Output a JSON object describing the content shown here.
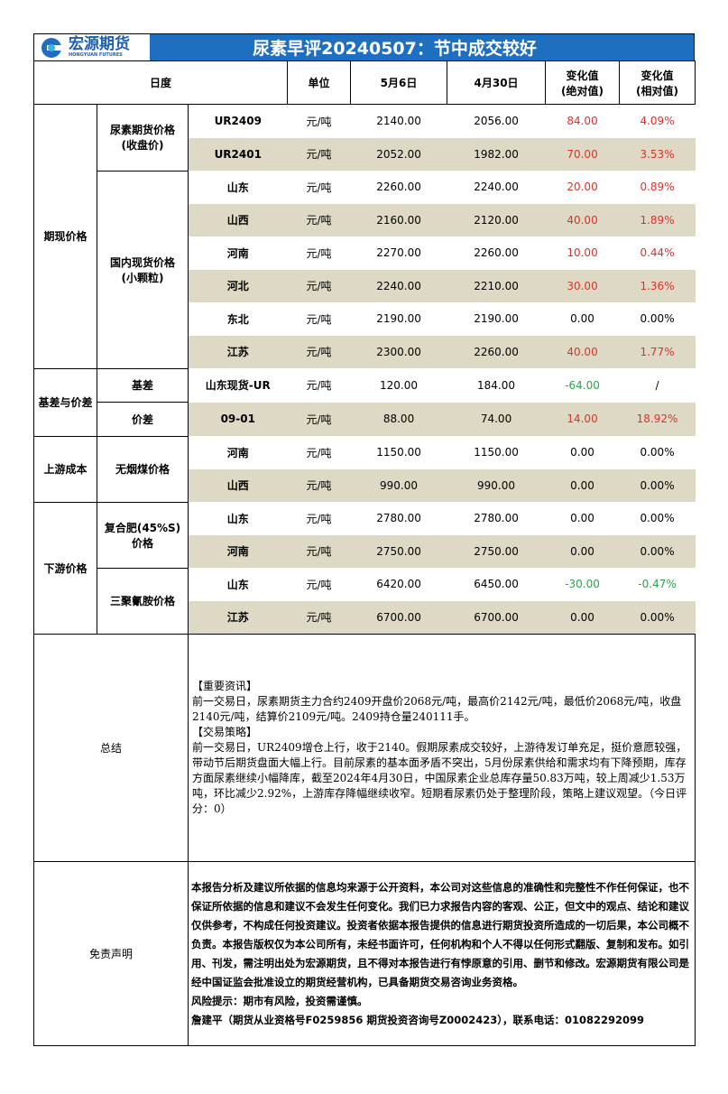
{
  "header": {
    "logo_cn": "宏源期货",
    "logo_en": "HONGYUAN FUTURES",
    "title": "尿素早评20240507：节中成交较好"
  },
  "table": {
    "columns": [
      "日度",
      "单位",
      "5月6日",
      "4月30日",
      "变化值\n(绝对值)",
      "变化值\n(相对值)"
    ],
    "groups": [
      {
        "label": "期现价格",
        "subgroups": [
          {
            "label": "尿素期货价格\n(收盘价)",
            "rows": [
              [
                "UR2409",
                "元/吨",
                "2140.00",
                "2056.00",
                "84.00",
                "4.09%"
              ],
              [
                "UR2401",
                "元/吨",
                "2052.00",
                "1982.00",
                "70.00",
                "3.53%"
              ]
            ]
          },
          {
            "label": "国内现货价格\n(小颗粒)",
            "rows": [
              [
                "山东",
                "元/吨",
                "2260.00",
                "2240.00",
                "20.00",
                "0.89%"
              ],
              [
                "山西",
                "元/吨",
                "2160.00",
                "2120.00",
                "40.00",
                "1.89%"
              ],
              [
                "河南",
                "元/吨",
                "2270.00",
                "2260.00",
                "10.00",
                "0.44%"
              ],
              [
                "河北",
                "元/吨",
                "2240.00",
                "2210.00",
                "30.00",
                "1.36%"
              ],
              [
                "东北",
                "元/吨",
                "2190.00",
                "2190.00",
                "0.00",
                "0.00%"
              ],
              [
                "江苏",
                "元/吨",
                "2300.00",
                "2260.00",
                "40.00",
                "1.77%"
              ]
            ]
          }
        ]
      },
      {
        "label": "基差与价差",
        "subgroups": [
          {
            "label": "基差",
            "rows": [
              [
                "山东现货-UR",
                "元/吨",
                "120.00",
                "184.00",
                "-64.00",
                "/"
              ]
            ]
          },
          {
            "label": "价差",
            "rows": [
              [
                "09-01",
                "元/吨",
                "88.00",
                "74.00",
                "14.00",
                "18.92%"
              ]
            ]
          }
        ]
      },
      {
        "label": "上游成本",
        "subgroups": [
          {
            "label": "无烟煤价格",
            "rows": [
              [
                "河南",
                "元/吨",
                "1150.00",
                "1150.00",
                "0.00",
                "0.00%"
              ],
              [
                "山西",
                "元/吨",
                "990.00",
                "990.00",
                "0.00",
                "0.00%"
              ]
            ]
          }
        ]
      },
      {
        "label": "下游价格",
        "subgroups": [
          {
            "label": "复合肥(45%S)\n价格",
            "rows": [
              [
                "山东",
                "元/吨",
                "2780.00",
                "2780.00",
                "0.00",
                "0.00%"
              ],
              [
                "河南",
                "元/吨",
                "2750.00",
                "2750.00",
                "0.00",
                "0.00%"
              ]
            ]
          },
          {
            "label": "三聚氰胺价格",
            "rows": [
              [
                "山东",
                "元/吨",
                "6420.00",
                "6450.00",
                "-30.00",
                "-0.47%"
              ],
              [
                "江苏",
                "元/吨",
                "6700.00",
                "6700.00",
                "0.00",
                "0.00%"
              ]
            ]
          }
        ]
      }
    ]
  },
  "summary": {
    "label": "总结",
    "paragraphs": [
      "【重要资讯】",
      "前一交易日，尿素期货主力合约2409开盘价2068元/吨，最高价2142元/吨，最低价2068元/吨，收盘2140元/吨，结算价2109元/吨。2409持仓量240111手。",
      "【交易策略】",
      "前一交易日，UR2409增仓上行，收于2140。假期尿素成交较好，上游待发订单充足，挺价意愿较强，带动节后期货盘面大幅上行。目前尿素的基本面矛盾不突出，5月份尿素供给和需求均有下降预期，库存方面尿素继续小幅降库，截至2024年4月30日，中国尿素企业总库存量50.83万吨，较上周减少1.53万吨，环比减少2.92%，上游库存降幅继续收窄。短期看尿素仍处于整理阶段，策略上建议观望。（今日评分：0）"
    ]
  },
  "disclaimer": {
    "label": "免责声明",
    "paragraphs": [
      "本报告分析及建议所依据的信息均来源于公开资料，本公司对这些信息的准确性和完整性不作任何保证，也不保证所依据的信息和建议不会发生任何变化。我们已力求报告内容的客观、公正，但文中的观点、结论和建议仅供参考，不构成任何投资建议。投资者依据本报告提供的信息进行期货投资所造成的一切后果，本公司概不负责。本报告版权仅为本公司所有，未经书面许可，任何机构和个人不得以任何形式翻版、复制和发布。如引用、刊发，需注明出处为宏源期货，且不得对本报告进行有悖原意的引用、删节和修改。宏源期货有限公司是经中国证监会批准设立的期货经营机构，已具备期货交易咨询业务资格。",
      "风险提示：期市有风险，投资需谨慎。",
      "詹建平（期货从业资格号F0259856 期货投资咨询号Z0002423），联系电话：01082292099"
    ]
  }
}
